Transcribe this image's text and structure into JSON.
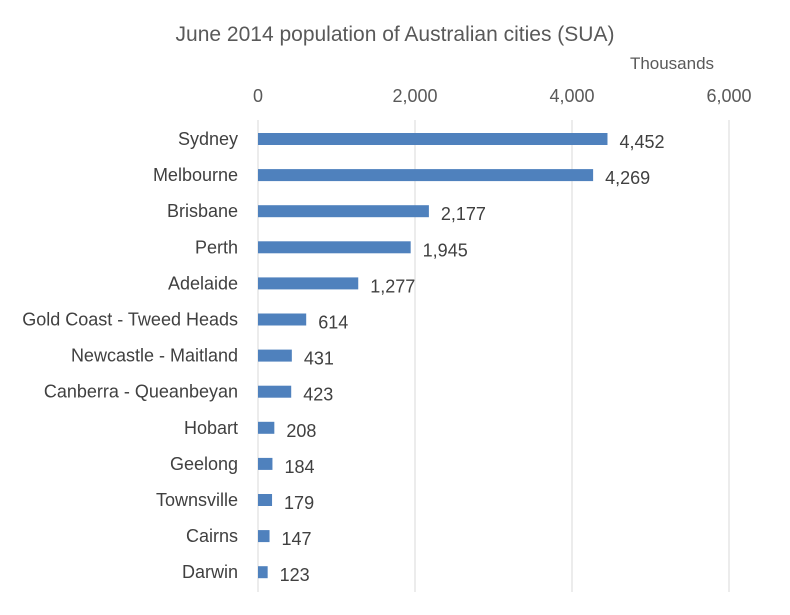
{
  "chart_data": {
    "type": "bar",
    "orientation": "horizontal",
    "title": "June 2014 population of Australian cities (SUA)",
    "unit_label": "Thousands",
    "xlabel": "",
    "ylabel": "",
    "xlim": [
      0,
      6000
    ],
    "x_ticks": [
      0,
      2000,
      4000,
      6000
    ],
    "x_tick_labels": [
      "0",
      "2,000",
      "4,000",
      "6,000"
    ],
    "x_axis_position": "top",
    "grid": true,
    "legend": "none",
    "bar_color": "#4f81bd",
    "categories": [
      "Sydney",
      "Melbourne",
      "Brisbane",
      "Perth",
      "Adelaide",
      "Gold Coast - Tweed Heads",
      "Newcastle - Maitland",
      "Canberra - Queanbeyan",
      "Hobart",
      "Geelong",
      "Townsville",
      "Cairns",
      "Darwin"
    ],
    "values": [
      4452,
      4269,
      2177,
      1945,
      1277,
      614,
      431,
      423,
      208,
      184,
      179,
      147,
      123
    ],
    "value_labels": [
      "4,452",
      "4,269",
      "2,177",
      "1,945",
      "1,277",
      "614",
      "431",
      "423",
      "208",
      "184",
      "179",
      "147",
      "123"
    ]
  }
}
